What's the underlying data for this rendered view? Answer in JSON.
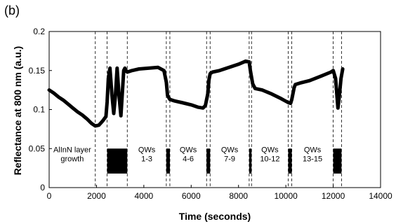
{
  "chart_data": {
    "type": "line",
    "panel_label": "(b)",
    "title": "",
    "xlabel": "Time (seconds)",
    "ylabel": "Reflectance at 800 nm (a.u.)",
    "xlim": [
      0,
      14000
    ],
    "ylim": [
      0,
      0.2
    ],
    "x_ticks": [
      0,
      2000,
      4000,
      6000,
      8000,
      10000,
      12000,
      14000
    ],
    "x_tick_labels": [
      "0",
      "2000",
      "4000",
      "6000",
      "8000",
      "10000",
      "12000",
      "14000"
    ],
    "y_ticks": [
      0,
      0.05,
      0.1,
      0.15,
      0.2
    ],
    "y_tick_labels": [
      "0",
      "0.05",
      "0.1",
      "0.15",
      "0.2"
    ],
    "grid": false,
    "line_color": "#000000",
    "series": [
      {
        "x": [
          0,
          200,
          400,
          600,
          800,
          1000,
          1200,
          1400,
          1600,
          1800,
          1950,
          2100,
          2250,
          2400,
          2450,
          2500,
          2570,
          2650,
          2730,
          2800,
          2870,
          2950,
          3030,
          3100,
          3150,
          3200,
          3250,
          3300,
          3500,
          3800,
          4200,
          4600,
          4850,
          4950,
          5000,
          5100,
          5200,
          5300,
          5600,
          6000,
          6300,
          6500,
          6600,
          6700,
          6750,
          6800,
          6900,
          7200,
          7600,
          8000,
          8300,
          8450,
          8500,
          8600,
          8700,
          9000,
          9400,
          9800,
          10100,
          10200,
          10250,
          10350,
          10400,
          10600,
          11000,
          11500,
          11900,
          12000,
          12100,
          12200,
          12250,
          12330,
          12400
        ],
        "y": [
          0.125,
          0.121,
          0.116,
          0.112,
          0.107,
          0.102,
          0.097,
          0.093,
          0.088,
          0.082,
          0.079,
          0.08,
          0.085,
          0.091,
          0.11,
          0.14,
          0.153,
          0.12,
          0.095,
          0.118,
          0.153,
          0.118,
          0.092,
          0.125,
          0.15,
          0.153,
          0.15,
          0.148,
          0.15,
          0.152,
          0.153,
          0.154,
          0.15,
          0.135,
          0.118,
          0.113,
          0.112,
          0.111,
          0.109,
          0.106,
          0.103,
          0.102,
          0.105,
          0.12,
          0.138,
          0.146,
          0.148,
          0.15,
          0.154,
          0.158,
          0.162,
          0.161,
          0.15,
          0.133,
          0.127,
          0.125,
          0.12,
          0.114,
          0.109,
          0.108,
          0.113,
          0.128,
          0.132,
          0.134,
          0.137,
          0.143,
          0.148,
          0.15,
          0.14,
          0.102,
          0.115,
          0.14,
          0.152
        ]
      }
    ],
    "vertical_dashed_lines_x": [
      1950,
      2450,
      3300,
      4950,
      5100,
      6650,
      6800,
      8450,
      8550,
      10100,
      10250,
      12000,
      12350
    ],
    "regions": [
      {
        "x_start": 0,
        "x_end": 1950,
        "lines": [
          "AlInN layer",
          "growth"
        ],
        "bar": false
      },
      {
        "x_start": 2450,
        "x_end": 3300,
        "lines": [],
        "bar": true
      },
      {
        "x_start": 3300,
        "x_end": 4950,
        "lines": [
          "QWs",
          "1-3"
        ],
        "bar": false
      },
      {
        "x_start": 4950,
        "x_end": 5100,
        "lines": [],
        "bar": true
      },
      {
        "x_start": 5100,
        "x_end": 6650,
        "lines": [
          "QWs",
          "4-6"
        ],
        "bar": false
      },
      {
        "x_start": 6650,
        "x_end": 6800,
        "lines": [],
        "bar": true
      },
      {
        "x_start": 6800,
        "x_end": 8450,
        "lines": [
          "QWs",
          "7-9"
        ],
        "bar": false
      },
      {
        "x_start": 8450,
        "x_end": 8550,
        "lines": [],
        "bar": true
      },
      {
        "x_start": 8550,
        "x_end": 10100,
        "lines": [
          "QWs",
          "10-12"
        ],
        "bar": false
      },
      {
        "x_start": 10100,
        "x_end": 10250,
        "lines": [],
        "bar": true
      },
      {
        "x_start": 10250,
        "x_end": 12000,
        "lines": [
          "QWs",
          "13-15"
        ],
        "bar": false
      },
      {
        "x_start": 12000,
        "x_end": 12350,
        "lines": [],
        "bar": true
      }
    ],
    "bar_y_range": [
      0.018,
      0.05
    ]
  }
}
